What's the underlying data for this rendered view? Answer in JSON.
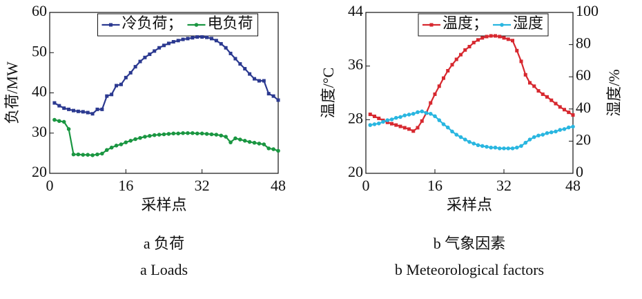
{
  "chart_data": [
    {
      "type": "line",
      "caption": "a 负荷",
      "caption_en": "a Loads",
      "xlabel": "采样点",
      "ylabel": "负荷/MW",
      "x": [
        1,
        2,
        3,
        4,
        5,
        6,
        7,
        8,
        9,
        10,
        11,
        12,
        13,
        14,
        15,
        16,
        17,
        18,
        19,
        20,
        21,
        22,
        23,
        24,
        25,
        26,
        27,
        28,
        29,
        30,
        31,
        32,
        33,
        34,
        35,
        36,
        37,
        38,
        39,
        40,
        41,
        42,
        43,
        44,
        45,
        46,
        47,
        48
      ],
      "xlim": [
        0,
        48
      ],
      "xticks": [
        0,
        16,
        32,
        48
      ],
      "ylim": [
        20,
        60
      ],
      "yticks": [
        20,
        30,
        40,
        50,
        60
      ],
      "series": [
        {
          "name": "冷负荷；",
          "color": "#2b3990",
          "marker": "square",
          "values": [
            37.5,
            36.8,
            36.2,
            35.9,
            35.6,
            35.4,
            35.3,
            35.1,
            34.8,
            35.9,
            35.9,
            39.2,
            39.6,
            41.8,
            42.1,
            43.8,
            45,
            46.5,
            47.8,
            48.8,
            49.6,
            50.4,
            51.2,
            51.8,
            52.3,
            52.7,
            53,
            53.3,
            53.5,
            53.7,
            53.9,
            53.9,
            53.8,
            53.5,
            53,
            52.2,
            51.2,
            49.8,
            48.5,
            47.2,
            46,
            44.7,
            43.5,
            43,
            43,
            39.8,
            39.2,
            38.2
          ]
        },
        {
          "name": "电负荷",
          "color": "#1a9641",
          "marker": "circle",
          "values": [
            33.3,
            33,
            32.8,
            31,
            24.7,
            24.7,
            24.6,
            24.6,
            24.5,
            24.7,
            24.9,
            25.8,
            26.4,
            26.9,
            27.2,
            27.7,
            28.1,
            28.5,
            28.8,
            29.1,
            29.3,
            29.5,
            29.6,
            29.7,
            29.8,
            29.9,
            29.9,
            30,
            30,
            30,
            29.9,
            29.9,
            29.8,
            29.7,
            29.6,
            29.4,
            29.1,
            27.7,
            28.7,
            28.4,
            28.1,
            27.8,
            27.6,
            27.4,
            27.2,
            26.2,
            26,
            25.6
          ]
        }
      ]
    },
    {
      "type": "line",
      "caption": "b 气象因素",
      "caption_en": "b Meteorological factors",
      "xlabel": "采样点",
      "ylabel": "温度/°C",
      "y2label": "湿度/%",
      "x": [
        1,
        2,
        3,
        4,
        5,
        6,
        7,
        8,
        9,
        10,
        11,
        12,
        13,
        14,
        15,
        16,
        17,
        18,
        19,
        20,
        21,
        22,
        23,
        24,
        25,
        26,
        27,
        28,
        29,
        30,
        31,
        32,
        33,
        34,
        35,
        36,
        37,
        38,
        39,
        40,
        41,
        42,
        43,
        44,
        45,
        46,
        47,
        48
      ],
      "xlim": [
        0,
        48
      ],
      "xticks": [
        0,
        16,
        32,
        48
      ],
      "ylim": [
        20,
        44
      ],
      "yticks": [
        20,
        28,
        36,
        44
      ],
      "y2lim": [
        0,
        100
      ],
      "y2ticks": [
        0,
        20,
        40,
        60,
        80,
        100
      ],
      "series": [
        {
          "name": "温度；",
          "color": "#d7282f",
          "marker": "square",
          "values": [
            28.8,
            28.5,
            28.2,
            27.9,
            27.6,
            27.4,
            27.2,
            27,
            26.8,
            26.6,
            26.3,
            26.8,
            27.8,
            29,
            30.5,
            31.8,
            33,
            34.2,
            35.3,
            36.2,
            37,
            37.7,
            38.4,
            38.9,
            39.5,
            39.9,
            40.2,
            40.4,
            40.5,
            40.5,
            40.4,
            40.2,
            40,
            39.8,
            38.3,
            36.7,
            34.7,
            33.5,
            33,
            32.3,
            31.8,
            31.4,
            30.9,
            30.4,
            29.9,
            29.5,
            29.1,
            28.7
          ]
        },
        {
          "name": "湿度",
          "color": "#29b6e0",
          "marker": "circle",
          "axis": "y2",
          "values": [
            30,
            30.5,
            31,
            32,
            33,
            33.5,
            34.5,
            35,
            36,
            36.5,
            37,
            38,
            38.5,
            37.5,
            37,
            35.5,
            33,
            30.5,
            28.5,
            26,
            24,
            22.5,
            21,
            19.5,
            18.5,
            17.5,
            17,
            16.5,
            16,
            16,
            15.5,
            15.5,
            15.5,
            15.5,
            16,
            17,
            19,
            21,
            22.5,
            23.5,
            24,
            25,
            25.5,
            26,
            27,
            27.5,
            28.5,
            29
          ]
        }
      ]
    }
  ]
}
